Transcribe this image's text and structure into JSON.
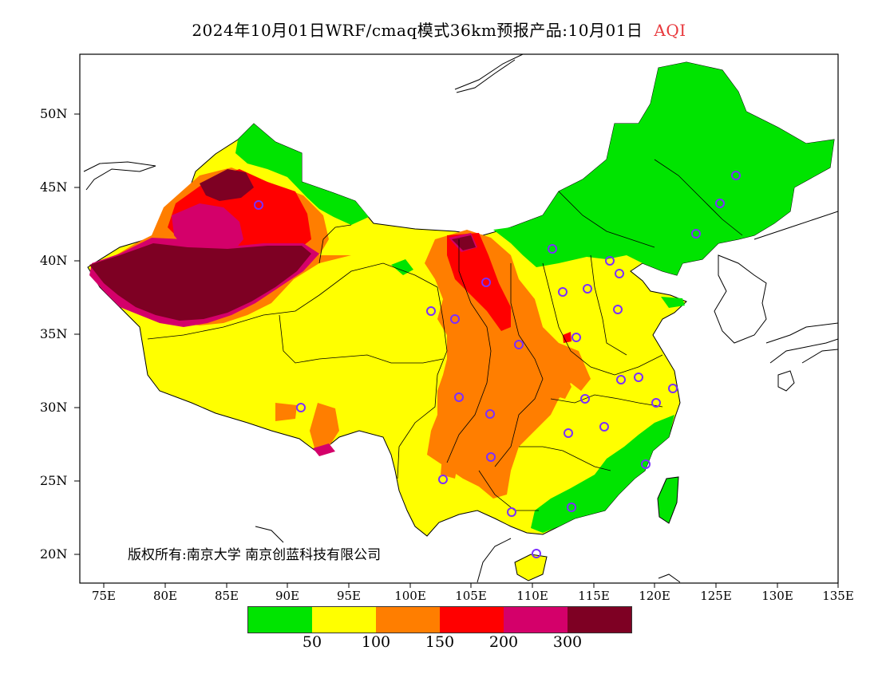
{
  "title": {
    "text": "2024年10月01日WRF/cmaq模式36km预报产品:10月01日",
    "variable": "AQI"
  },
  "axes": {
    "lat_labels": [
      "50N",
      "45N",
      "40N",
      "35N",
      "30N",
      "25N",
      "20N"
    ],
    "lon_labels": [
      "75E",
      "80E",
      "85E",
      "90E",
      "95E",
      "100E",
      "105E",
      "110E",
      "115E",
      "120E",
      "125E",
      "130E",
      "135E"
    ]
  },
  "copyright": "版权所有:南京大学 南京创蓝科技有限公司",
  "legend": {
    "colors": [
      "#00e400",
      "#ffff00",
      "#ff7e00",
      "#ff0000",
      "#d4006a",
      "#7e0023"
    ],
    "labels": [
      "50",
      "100",
      "150",
      "200",
      "300"
    ]
  },
  "colors": {
    "good": "#00e400",
    "moderate": "#ffff00",
    "usg": "#ff7e00",
    "unhealthy": "#ff0000",
    "very_unhealthy": "#d4006a",
    "hazardous": "#7e0023",
    "city_marker": "#7b2fff"
  }
}
